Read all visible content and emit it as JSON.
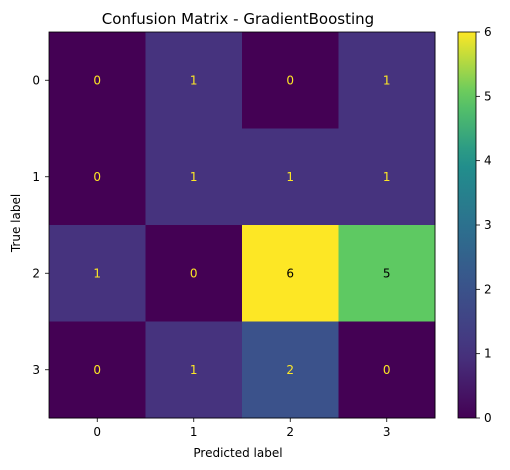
{
  "chart_data": {
    "type": "heatmap",
    "title": "Confusion Matrix - GradientBoosting",
    "xlabel": "Predicted label",
    "ylabel": "True label",
    "x_categories": [
      "0",
      "1",
      "2",
      "3"
    ],
    "y_categories": [
      "0",
      "1",
      "2",
      "3"
    ],
    "matrix": [
      [
        0,
        1,
        0,
        1
      ],
      [
        0,
        1,
        1,
        1
      ],
      [
        1,
        0,
        6,
        5
      ],
      [
        0,
        1,
        2,
        0
      ]
    ],
    "colormap": "viridis",
    "colorbar": {
      "range": [
        0,
        6
      ],
      "ticks": [
        "0",
        "1",
        "2",
        "3",
        "4",
        "5",
        "6"
      ]
    },
    "text_colors": {
      "low": "#fde725",
      "high": "#000000"
    },
    "grid": false
  }
}
